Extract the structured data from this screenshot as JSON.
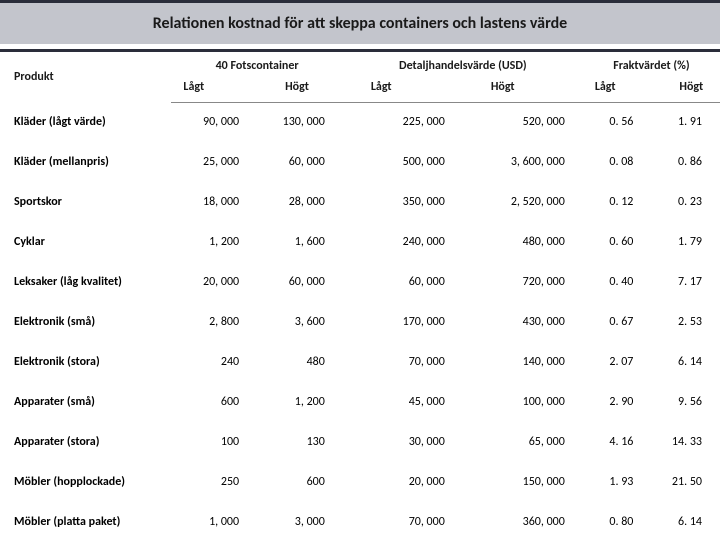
{
  "title": "Relationen kostnad för att skeppa containers och lastens värde",
  "colors": {
    "title_bg": "#c3c5cc",
    "border_dark": "#2a2d3a",
    "text": "#1a1a1a"
  },
  "typography": {
    "title_fontsize_pt": 12,
    "cell_fontsize_pt": 9,
    "font_family": "Calibri"
  },
  "columns": {
    "product": "Produkt",
    "group_container": "40 Fotscontainer",
    "group_retail": "Detaljhandelsvärde (USD)",
    "group_freight": "Fraktvärdet (%)",
    "low": "Lågt",
    "high": "Högt"
  },
  "rows": [
    {
      "product": "Kläder (lågt värde)",
      "c_low": "90, 000",
      "c_high": "130, 000",
      "v_low": "225, 000",
      "v_high": "520, 000",
      "p_low": "0. 56",
      "p_high": "1. 91"
    },
    {
      "product": "Kläder (mellanpris)",
      "c_low": "25, 000",
      "c_high": "60, 000",
      "v_low": "500, 000",
      "v_high": "3, 600, 000",
      "p_low": "0. 08",
      "p_high": "0. 86"
    },
    {
      "product": "Sportskor",
      "c_low": "18, 000",
      "c_high": "28, 000",
      "v_low": "350, 000",
      "v_high": "2, 520, 000",
      "p_low": "0. 12",
      "p_high": "0. 23"
    },
    {
      "product": "Cyklar",
      "c_low": "1, 200",
      "c_high": "1, 600",
      "v_low": "240, 000",
      "v_high": "480, 000",
      "p_low": "0. 60",
      "p_high": "1. 79"
    },
    {
      "product": "Leksaker (låg kvalitet)",
      "c_low": "20, 000",
      "c_high": "60, 000",
      "v_low": "60, 000",
      "v_high": "720, 000",
      "p_low": "0. 40",
      "p_high": "7. 17"
    },
    {
      "product": "Elektronik (små)",
      "c_low": "2, 800",
      "c_high": "3, 600",
      "v_low": "170, 000",
      "v_high": "430, 000",
      "p_low": "0. 67",
      "p_high": "2. 53"
    },
    {
      "product": "Elektronik (stora)",
      "c_low": "240",
      "c_high": "480",
      "v_low": "70, 000",
      "v_high": "140, 000",
      "p_low": "2. 07",
      "p_high": "6. 14"
    },
    {
      "product": "Apparater (små)",
      "c_low": "600",
      "c_high": "1, 200",
      "v_low": "45, 000",
      "v_high": "100, 000",
      "p_low": "2. 90",
      "p_high": "9. 56"
    },
    {
      "product": "Apparater (stora)",
      "c_low": "100",
      "c_high": "130",
      "v_low": "30, 000",
      "v_high": "65, 000",
      "p_low": "4. 16",
      "p_high": "14. 33"
    },
    {
      "product": "Möbler (hopplockade)",
      "c_low": "250",
      "c_high": "600",
      "v_low": "20, 000",
      "v_high": "150, 000",
      "p_low": "1. 93",
      "p_high": "21. 50"
    },
    {
      "product": "Möbler (platta paket)",
      "c_low": "1, 000",
      "c_high": "3, 000",
      "v_low": "70, 000",
      "v_high": "360, 000",
      "p_low": "0. 80",
      "p_high": "6. 14"
    }
  ]
}
